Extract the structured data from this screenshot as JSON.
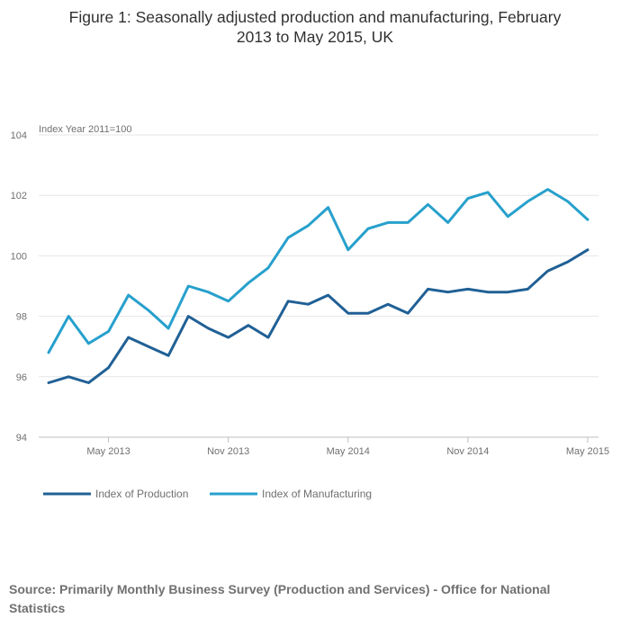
{
  "chart_data": {
    "type": "line",
    "title": "Figure 1: Seasonally adjusted production and manufacturing, February 2013 to May 2015, UK",
    "ylabel": "Index Year 2011=100",
    "xlabel": "",
    "ylim": [
      94,
      104
    ],
    "yticks": [
      "94",
      "96",
      "98",
      "100",
      "102",
      "104"
    ],
    "x": [
      "Feb 2013",
      "Mar 2013",
      "Apr 2013",
      "May 2013",
      "Jun 2013",
      "Jul 2013",
      "Aug 2013",
      "Sep 2013",
      "Oct 2013",
      "Nov 2013",
      "Dec 2013",
      "Jan 2014",
      "Feb 2014",
      "Mar 2014",
      "Apr 2014",
      "May 2014",
      "Jun 2014",
      "Jul 2014",
      "Aug 2014",
      "Sep 2014",
      "Oct 2014",
      "Nov 2014",
      "Dec 2014",
      "Jan 2015",
      "Feb 2015",
      "Mar 2015",
      "Apr 2015",
      "May 2015"
    ],
    "xticks": [
      "May 2013",
      "Nov 2013",
      "May 2014",
      "Nov 2014",
      "May 2015"
    ],
    "xtick_indices": [
      3,
      9,
      15,
      21,
      27
    ],
    "grid": true,
    "legend_position": "bottom-left",
    "series": [
      {
        "name": "Index of Production",
        "color": "#206095",
        "values": [
          95.8,
          96.0,
          95.8,
          96.3,
          97.3,
          97.0,
          96.7,
          98.0,
          97.6,
          97.3,
          97.7,
          97.3,
          98.5,
          98.4,
          98.7,
          98.1,
          98.1,
          98.4,
          98.1,
          98.9,
          98.8,
          98.9,
          98.8,
          98.8,
          98.9,
          99.5,
          99.8,
          100.2
        ]
      },
      {
        "name": "Index of Manufacturing",
        "color": "#27a0cc",
        "values": [
          96.8,
          98.0,
          97.1,
          97.5,
          98.7,
          98.2,
          97.6,
          99.0,
          98.8,
          98.5,
          99.1,
          99.6,
          100.6,
          101.0,
          101.6,
          100.2,
          100.9,
          101.1,
          101.1,
          101.7,
          101.1,
          101.9,
          102.1,
          101.3,
          101.8,
          102.2,
          101.8,
          101.2
        ]
      }
    ]
  },
  "source": "Source: Primarily Monthly Business Survey (Production and Services) - Office for National Statistics"
}
